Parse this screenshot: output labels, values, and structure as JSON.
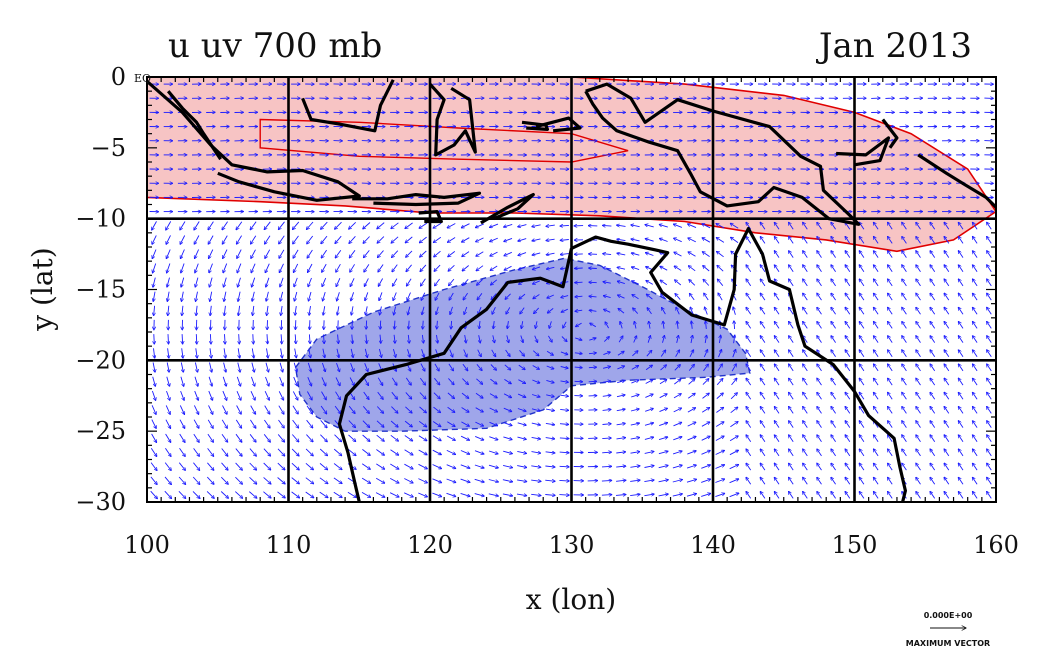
{
  "title_left": "u uv 700 mb",
  "title_right": "Jan 2013",
  "xlabel": "x (lon)",
  "ylabel": "y (lat)",
  "equator_label": "EQ",
  "reference_vector": {
    "value": "0.000E+00",
    "label": "MAXIMUM VECTOR"
  },
  "colors": {
    "positive_fill": "#f7c4c4",
    "positive_line": "#e00000",
    "negative_fill": "#8e96e6",
    "negative_line": "#2233cc",
    "vector": "#1a1aff",
    "coast": "#000000"
  },
  "chart_data": {
    "type": "map",
    "projection": "lon-lat",
    "xlim": [
      100,
      160
    ],
    "ylim": [
      -30,
      0
    ],
    "x_ticks": [
      "100",
      "110",
      "120",
      "130",
      "140",
      "150",
      "160"
    ],
    "y_ticks": [
      "0",
      "−5",
      "−10",
      "−15",
      "−20",
      "−25",
      "−30"
    ],
    "grid_lon": [
      110,
      120,
      130,
      140,
      150
    ],
    "grid_lat": [
      -10,
      -20
    ],
    "positive_region_lonlat": [
      [
        100,
        0
      ],
      [
        110,
        0
      ],
      [
        120,
        0
      ],
      [
        130,
        0
      ],
      [
        138,
        -0.5
      ],
      [
        145,
        -1.3
      ],
      [
        150,
        -2.5
      ],
      [
        154,
        -4
      ],
      [
        158,
        -6.5
      ],
      [
        160,
        -9.5
      ],
      [
        157,
        -11.5
      ],
      [
        153,
        -12.3
      ],
      [
        148,
        -11.5
      ],
      [
        143,
        -11
      ],
      [
        138,
        -10.2
      ],
      [
        132,
        -9.8
      ],
      [
        126,
        -9.6
      ],
      [
        120,
        -9.6
      ],
      [
        114,
        -9.1
      ],
      [
        108,
        -8.8
      ],
      [
        100,
        -8.5
      ]
    ],
    "positive_inner_lonlat": [
      [
        108,
        -3
      ],
      [
        115,
        -3.2
      ],
      [
        122,
        -3.6
      ],
      [
        130,
        -4
      ],
      [
        134,
        -5.2
      ],
      [
        130,
        -6
      ],
      [
        122,
        -5.8
      ],
      [
        115,
        -5.6
      ],
      [
        108,
        -5
      ]
    ],
    "negative_region_lonlat": [
      [
        110.5,
        -20.5
      ],
      [
        112,
        -18.5
      ],
      [
        116,
        -16.6
      ],
      [
        121,
        -15
      ],
      [
        126,
        -13.6
      ],
      [
        129.5,
        -12.8
      ],
      [
        132,
        -13.3
      ],
      [
        135,
        -14.8
      ],
      [
        138,
        -16.4
      ],
      [
        141,
        -17.8
      ],
      [
        142.3,
        -19.5
      ],
      [
        142.6,
        -20.9
      ],
      [
        139.5,
        -21.2
      ],
      [
        134,
        -21.4
      ],
      [
        130,
        -21.8
      ],
      [
        128,
        -23.5
      ],
      [
        124,
        -24.8
      ],
      [
        118,
        -25
      ],
      [
        114,
        -25
      ],
      [
        112,
        -24
      ],
      [
        110.8,
        -22.4
      ]
    ],
    "coast_lonlat": [
      [
        [
          100,
          -0.3
        ],
        [
          102.5,
          -2.5
        ],
        [
          104.5,
          -4.8
        ],
        [
          106,
          -6.2
        ],
        [
          108.5,
          -6.7
        ],
        [
          111,
          -6.6
        ],
        [
          113.5,
          -7.4
        ],
        [
          115,
          -8.4
        ],
        [
          112,
          -8.7
        ],
        [
          109,
          -8.1
        ],
        [
          106.5,
          -7.4
        ],
        [
          105,
          -6.8
        ]
      ],
      [
        [
          105.2,
          -5.8
        ],
        [
          104,
          -4
        ],
        [
          103.5,
          -3.2
        ],
        [
          102.5,
          -2.2
        ],
        [
          101.5,
          -1
        ]
      ],
      [
        [
          111,
          -1.5
        ],
        [
          111.6,
          -3
        ],
        [
          113.5,
          -3.3
        ],
        [
          116.1,
          -3.8
        ],
        [
          116.5,
          -2
        ],
        [
          117.4,
          -0.2
        ]
      ],
      [
        [
          120,
          -0.5
        ],
        [
          121,
          -1.6
        ],
        [
          120.5,
          -3
        ],
        [
          120.4,
          -5.5
        ],
        [
          121.7,
          -4.8
        ],
        [
          122.5,
          -3.8
        ],
        [
          123.2,
          -5.3
        ],
        [
          122.8,
          -1.6
        ],
        [
          121.5,
          -0.8
        ]
      ],
      [
        [
          114.5,
          -8.6
        ],
        [
          117,
          -8.6
        ],
        [
          119,
          -8.3
        ],
        [
          121,
          -8.5
        ],
        [
          123.5,
          -8.2
        ],
        [
          122,
          -8.9
        ],
        [
          119,
          -9
        ],
        [
          116,
          -8.9
        ]
      ],
      [
        [
          119.2,
          -9.6
        ],
        [
          120.5,
          -9.5
        ],
        [
          120.8,
          -10.2
        ],
        [
          119.6,
          -10.2
        ]
      ],
      [
        [
          123.6,
          -10.3
        ],
        [
          125.5,
          -9.2
        ],
        [
          127.3,
          -8.3
        ],
        [
          126.2,
          -9.3
        ],
        [
          124.5,
          -10
        ]
      ],
      [
        [
          126.5,
          -3.2
        ],
        [
          128.2,
          -3.4
        ],
        [
          128.3,
          -3.7
        ],
        [
          126.8,
          -3.6
        ]
      ],
      [
        [
          127.5,
          -3.5
        ],
        [
          129.8,
          -2.9
        ],
        [
          130.6,
          -3.6
        ],
        [
          128.7,
          -3.8
        ]
      ],
      [
        [
          131,
          -1
        ],
        [
          132.5,
          -0.5
        ],
        [
          134.2,
          -1.5
        ],
        [
          135.2,
          -3.2
        ],
        [
          137.5,
          -1.6
        ],
        [
          140,
          -2.4
        ],
        [
          144,
          -3.5
        ],
        [
          146.2,
          -5.6
        ],
        [
          147.6,
          -6.3
        ],
        [
          147.8,
          -8
        ],
        [
          149.6,
          -9.7
        ],
        [
          150.3,
          -10.4
        ],
        [
          148.2,
          -10
        ],
        [
          146.3,
          -8.5
        ],
        [
          144.3,
          -7.8
        ],
        [
          143.2,
          -8.8
        ],
        [
          141,
          -9.1
        ],
        [
          139.1,
          -8.1
        ],
        [
          138.4,
          -6.8
        ],
        [
          137.5,
          -5.2
        ],
        [
          135.5,
          -4.6
        ],
        [
          133.2,
          -3.8
        ],
        [
          132.2,
          -2.9
        ],
        [
          131.5,
          -1.9
        ],
        [
          131,
          -1
        ]
      ],
      [
        [
          152,
          -3
        ],
        [
          153,
          -4.3
        ],
        [
          152.5,
          -5
        ]
      ],
      [
        [
          148.7,
          -5.4
        ],
        [
          150.8,
          -5.5
        ],
        [
          152.4,
          -4.3
        ],
        [
          151.8,
          -5.9
        ],
        [
          150,
          -6.2
        ]
      ],
      [
        [
          154.5,
          -5.5
        ],
        [
          156.5,
          -6.8
        ],
        [
          157.8,
          -7.6
        ],
        [
          159.3,
          -8.5
        ],
        [
          160,
          -9.2
        ]
      ],
      [
        [
          130,
          -12.1
        ],
        [
          131.7,
          -11.3
        ],
        [
          132.8,
          -11.6
        ],
        [
          134,
          -11.8
        ],
        [
          135.9,
          -12.2
        ],
        [
          136.8,
          -12.4
        ],
        [
          135.6,
          -13.8
        ],
        [
          136.4,
          -15.2
        ],
        [
          138.5,
          -16.8
        ],
        [
          140.8,
          -17.5
        ],
        [
          141.5,
          -15
        ],
        [
          141.6,
          -12.5
        ],
        [
          142.5,
          -10.7
        ],
        [
          143.5,
          -12.5
        ],
        [
          144,
          -14.4
        ],
        [
          145.4,
          -15
        ],
        [
          146,
          -17.5
        ],
        [
          146.5,
          -19
        ],
        [
          148.5,
          -20.3
        ],
        [
          150,
          -22.2
        ],
        [
          151,
          -23.9
        ],
        [
          152.8,
          -25.5
        ],
        [
          153.2,
          -27.5
        ],
        [
          153.6,
          -29.2
        ],
        [
          153.4,
          -30
        ]
      ],
      [
        [
          130,
          -12.1
        ],
        [
          129.4,
          -14.8
        ],
        [
          127.8,
          -14.2
        ],
        [
          125.5,
          -14.5
        ],
        [
          124,
          -16.4
        ],
        [
          122.2,
          -17.7
        ],
        [
          121,
          -19.5
        ],
        [
          118.3,
          -20.3
        ],
        [
          115.5,
          -21
        ],
        [
          114.1,
          -22.5
        ],
        [
          113.6,
          -24.5
        ],
        [
          114.2,
          -26.5
        ],
        [
          114.7,
          -28.7
        ],
        [
          115,
          -30
        ]
      ]
    ]
  }
}
